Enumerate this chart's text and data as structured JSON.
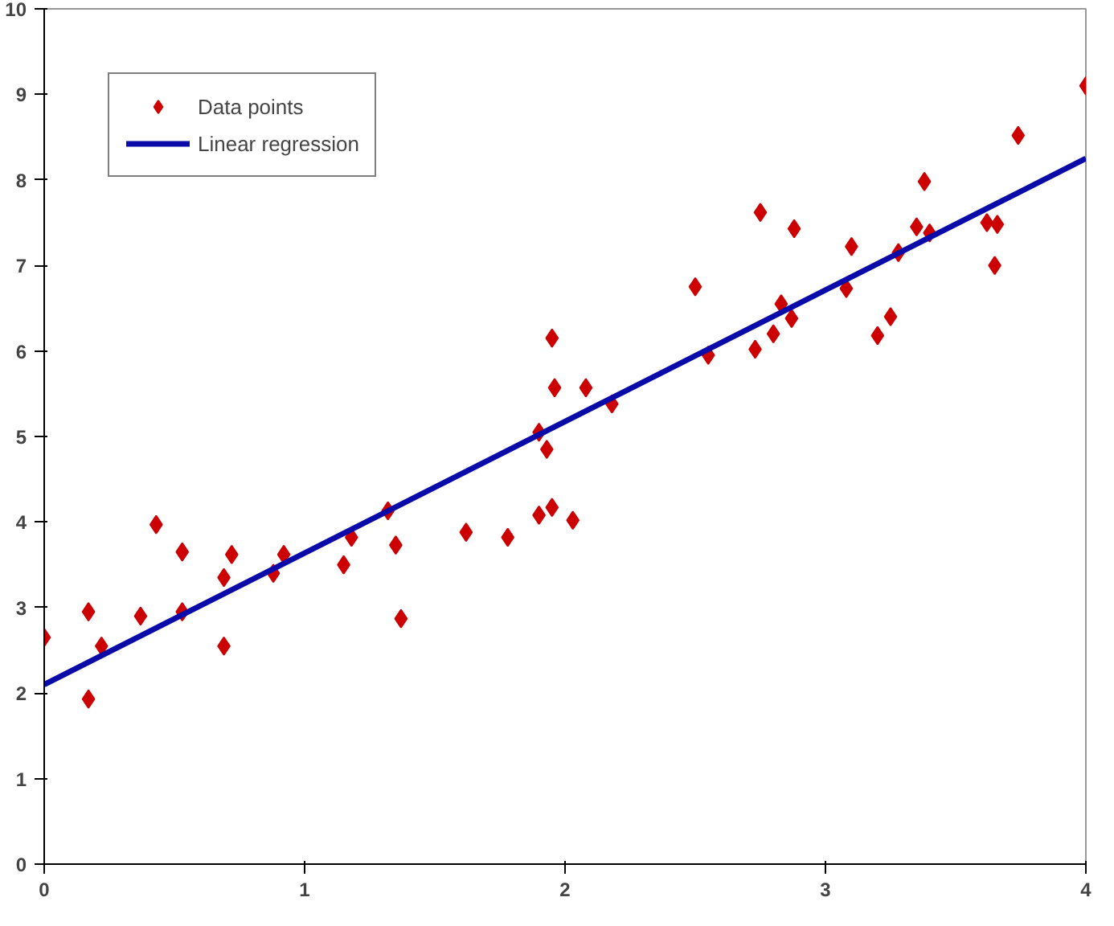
{
  "chart_data": {
    "type": "scatter",
    "xlim": [
      0,
      4
    ],
    "ylim": [
      0,
      10
    ],
    "xticks": [
      0,
      1,
      2,
      3,
      4
    ],
    "yticks": [
      0,
      1,
      2,
      3,
      4,
      5,
      6,
      7,
      8,
      9,
      10
    ],
    "grid": false,
    "legend": "top left",
    "series": [
      {
        "name": "Data points",
        "marker": "diamond",
        "color": "#cc0000",
        "x": [
          0,
          0.17,
          0.17,
          0.22,
          0.37,
          0.43,
          0.53,
          0.53,
          0.69,
          0.69,
          0.72,
          0.88,
          0.92,
          1.15,
          1.18,
          1.32,
          1.35,
          1.37,
          1.62,
          1.78,
          1.9,
          1.9,
          1.93,
          1.95,
          1.95,
          1.96,
          2.03,
          2.08,
          2.18,
          2.5,
          2.55,
          2.73,
          2.75,
          2.8,
          2.83,
          2.87,
          2.88,
          3.08,
          3.1,
          3.2,
          3.25,
          3.28,
          3.35,
          3.38,
          3.4,
          3.62,
          3.65,
          3.66,
          3.74,
          4.0
        ],
        "values": [
          2.65,
          1.93,
          2.95,
          2.55,
          2.9,
          3.97,
          2.95,
          3.65,
          2.55,
          3.35,
          3.62,
          3.4,
          3.62,
          3.5,
          3.82,
          4.13,
          3.73,
          2.87,
          3.88,
          3.82,
          4.08,
          5.05,
          4.85,
          6.15,
          4.17,
          5.57,
          4.02,
          5.57,
          5.38,
          6.75,
          5.95,
          6.02,
          7.62,
          6.2,
          6.55,
          6.38,
          7.43,
          6.73,
          7.22,
          6.18,
          6.4,
          7.15,
          7.45,
          7.98,
          7.38,
          7.5,
          7.0,
          7.48,
          8.52,
          9.1
        ]
      },
      {
        "name": "Linear regression",
        "type": "line",
        "line_style": "solid",
        "color": "#0a0aa8",
        "x": [
          0,
          4
        ],
        "values": [
          2.1,
          8.25
        ]
      }
    ]
  }
}
